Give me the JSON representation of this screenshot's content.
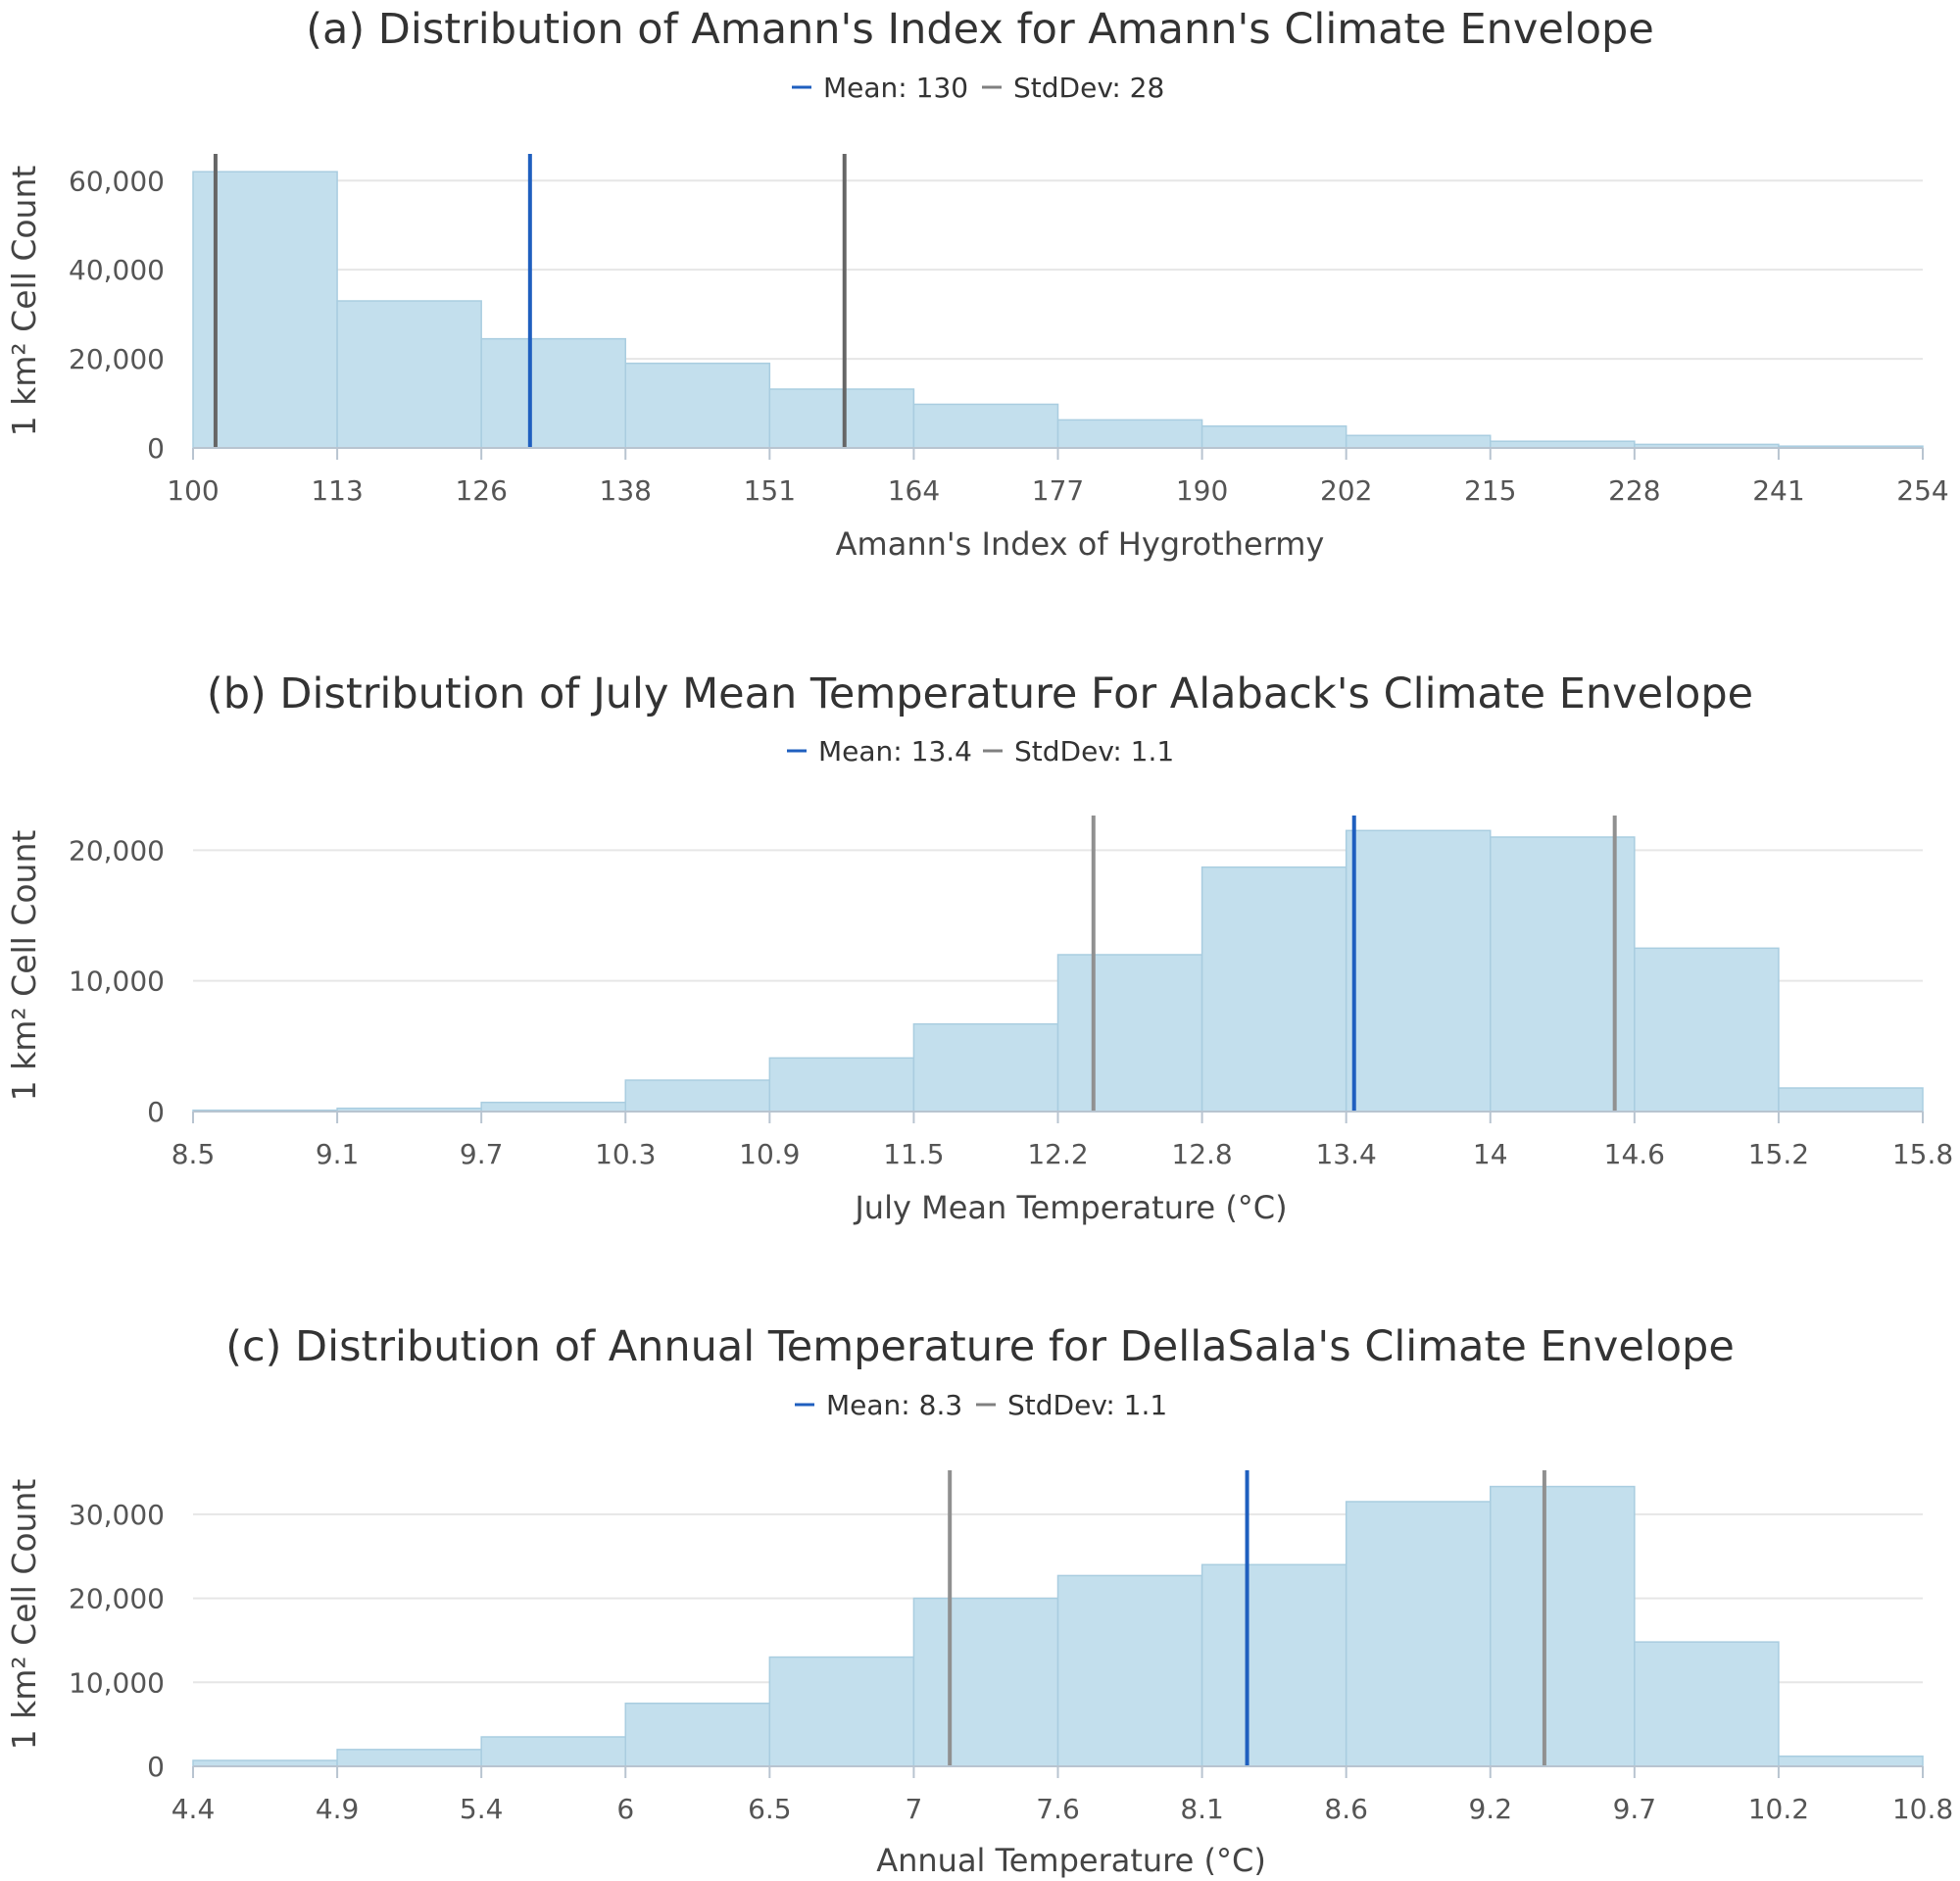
{
  "chart_data": [
    {
      "type": "histogram",
      "title": "(a) Distribution of Amann's Index for Amann's Climate Envelope",
      "xlabel": "Amann's Index of Hygrothermy",
      "ylabel": "1 km² Cell Count",
      "legend": [
        {
          "label": "Mean: 130",
          "color": "#1f5fbf"
        },
        {
          "label": "StdDev: 28",
          "color": "#808080"
        }
      ],
      "x_ticks": [
        "100",
        "113",
        "126",
        "138",
        "151",
        "164",
        "177",
        "190",
        "202",
        "215",
        "228",
        "241",
        "254"
      ],
      "y_ticks": [
        0,
        20000,
        40000,
        60000
      ],
      "y_tick_labels": [
        "0",
        "20,000",
        "40,000",
        "60,000"
      ],
      "ylim": [
        0,
        66000
      ],
      "bin_counts": [
        62000,
        33000,
        24500,
        19000,
        13200,
        9800,
        6300,
        4900,
        2800,
        1500,
        800,
        400
      ],
      "mean_line": {
        "value": 130,
        "color": "#1f5fbf"
      },
      "stddev_lines": [
        {
          "value": 102,
          "color": "#666666"
        },
        {
          "value": 158,
          "color": "#666666"
        }
      ],
      "bar_color": "#c3dfed"
    },
    {
      "type": "histogram",
      "title": "(b) Distribution of July Mean Temperature For Alaback's Climate Envelope",
      "xlabel": "July Mean Temperature (°C)",
      "ylabel": "1 km² Cell Count",
      "legend": [
        {
          "label": "Mean: 13.4",
          "color": "#1f5fbf"
        },
        {
          "label": "StdDev: 1.1",
          "color": "#808080"
        }
      ],
      "x_ticks": [
        "8.5",
        "9.1",
        "9.7",
        "10.3",
        "10.9",
        "11.5",
        "12.2",
        "12.8",
        "13.4",
        "14",
        "14.6",
        "15.2",
        "15.8"
      ],
      "y_ticks": [
        0,
        10000,
        20000
      ],
      "y_tick_labels": [
        "0",
        "10,000",
        "20,000"
      ],
      "ylim": [
        0,
        22500
      ],
      "bin_counts": [
        100,
        250,
        700,
        2400,
        4100,
        6700,
        12000,
        18700,
        21500,
        21000,
        12500,
        1800
      ],
      "mean_line": {
        "value": 13.4,
        "color": "#1f5fbf"
      },
      "stddev_lines": [
        {
          "value": 12.3,
          "color": "#909090"
        },
        {
          "value": 14.5,
          "color": "#909090"
        }
      ],
      "bar_color": "#c3dfed"
    },
    {
      "type": "histogram",
      "title": "(c) Distribution of Annual Temperature for DellaSala's Climate Envelope",
      "xlabel": "Annual Temperature (°C)",
      "ylabel": "1 km² Cell Count",
      "legend": [
        {
          "label": "Mean: 8.3",
          "color": "#1f5fbf"
        },
        {
          "label": "StdDev: 1.1",
          "color": "#808080"
        }
      ],
      "x_ticks": [
        "4.4",
        "4.9",
        "5.4",
        "6",
        "6.5",
        "7",
        "7.6",
        "8.1",
        "8.6",
        "9.2",
        "9.7",
        "10.2",
        "10.8"
      ],
      "y_ticks": [
        0,
        10000,
        20000,
        30000
      ],
      "y_tick_labels": [
        "0",
        "10,000",
        "20,000",
        "30,000"
      ],
      "ylim": [
        0,
        35000
      ],
      "bin_counts": [
        700,
        2000,
        3500,
        7500,
        13000,
        20000,
        22700,
        24000,
        31500,
        33300,
        14800,
        1200
      ],
      "mean_line": {
        "value": 8.3,
        "color": "#1f5fbf"
      },
      "stddev_lines": [
        {
          "value": 7.2,
          "color": "#909090"
        },
        {
          "value": 9.4,
          "color": "#909090"
        }
      ],
      "bar_color": "#c3dfed"
    }
  ]
}
